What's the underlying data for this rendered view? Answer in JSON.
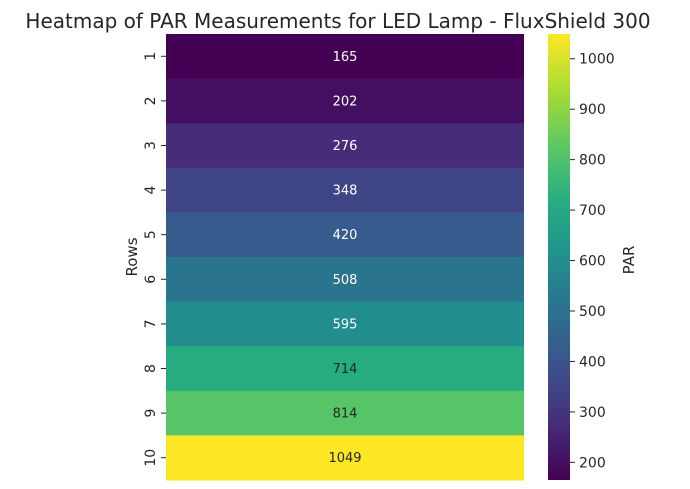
{
  "chart_data": {
    "type": "heatmap",
    "title": "Heatmap of PAR Measurements for LED Lamp - FluxShield 300",
    "xlabel": "",
    "ylabel": "Rows",
    "rows": [
      "1",
      "2",
      "3",
      "4",
      "5",
      "6",
      "7",
      "8",
      "9",
      "10"
    ],
    "values": [
      165,
      202,
      276,
      348,
      420,
      508,
      595,
      714,
      814,
      1049
    ],
    "colorbar": {
      "label": "PAR",
      "range": [
        165,
        1049
      ],
      "ticks": [
        200,
        300,
        400,
        500,
        600,
        700,
        800,
        900,
        1000
      ]
    },
    "colormap": "viridis",
    "annotations": true,
    "grid": false
  }
}
